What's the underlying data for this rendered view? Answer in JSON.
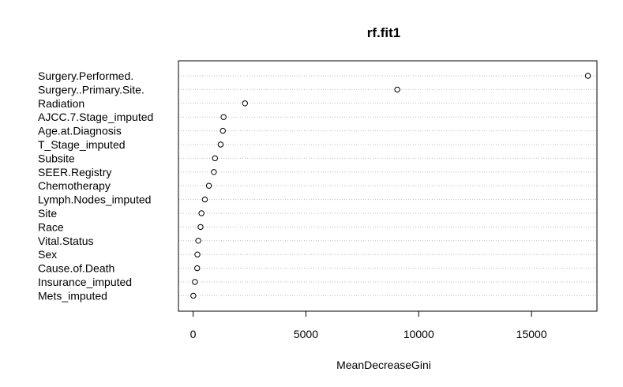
{
  "chart_data": {
    "type": "scatter",
    "title": "rf.fit1",
    "xlabel": "MeanDecreaseGini",
    "ylabel": "",
    "xlim": [
      -650,
      17900
    ],
    "xticks": [
      0,
      5000,
      10000,
      15000
    ],
    "xtick_labels": [
      "0",
      "5000",
      "10000",
      "15000"
    ],
    "categories": [
      "Surgery.Performed.",
      "Surgery..Primary.Site.",
      "Radiation",
      "AJCC.7.Stage_imputed",
      "Age.at.Diagnosis",
      "T_Stage_imputed",
      "Subsite",
      "SEER.Registry",
      "Chemotherapy",
      "Lymph.Nodes_imputed",
      "Site",
      "Race",
      "Vital.Status",
      "Sex",
      "Cause.of.Death",
      "Insurance_imputed",
      "Mets_imputed"
    ],
    "values": [
      17500,
      9050,
      2300,
      1350,
      1320,
      1220,
      970,
      920,
      700,
      520,
      370,
      330,
      230,
      190,
      180,
      80,
      10
    ],
    "grid": true,
    "grid_style": "dotted",
    "point_style": "open-circle"
  }
}
